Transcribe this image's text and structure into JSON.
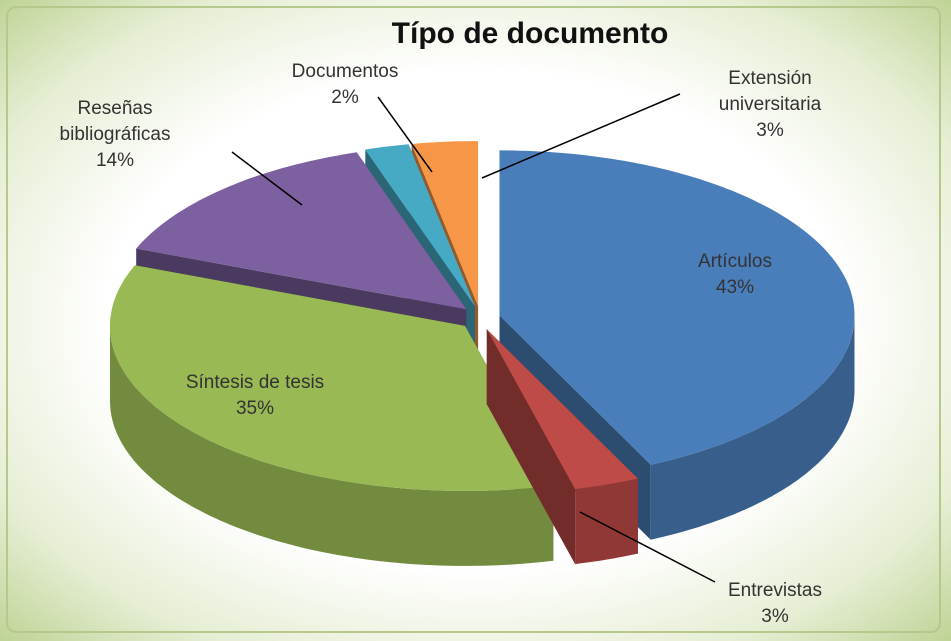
{
  "chart_data": {
    "type": "pie3d",
    "title": "Típo de documento",
    "categories": [
      "Artículos",
      "Entrevistas",
      "Síntesis de tesis",
      "Reseñas bibliográficas",
      "Documentos",
      "Extensión universitaria"
    ],
    "values": [
      43,
      3,
      35,
      14,
      2,
      3
    ],
    "value_labels": [
      "43%",
      "3%",
      "35%",
      "14%",
      "2%",
      "3%"
    ],
    "colors": [
      "#4a7ebb",
      "#be4b48",
      "#98b954",
      "#7d60a0",
      "#46aac5",
      "#f79646"
    ]
  }
}
